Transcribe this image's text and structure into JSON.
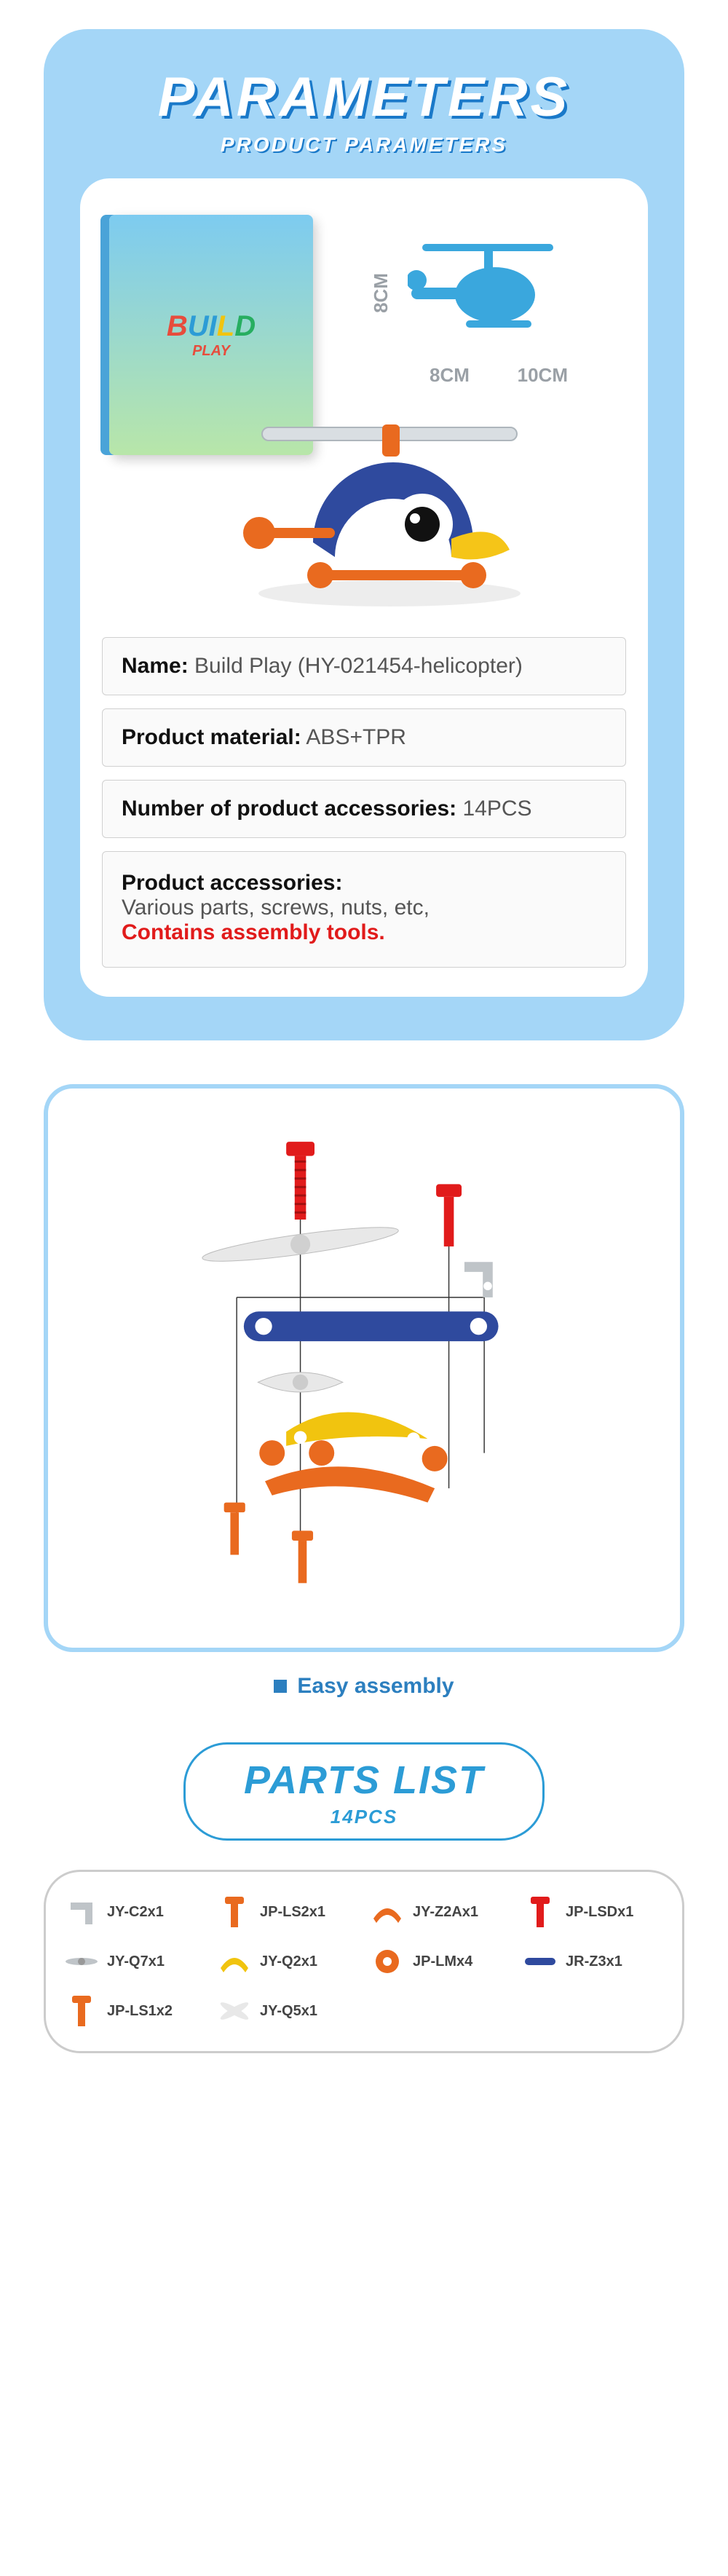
{
  "colors": {
    "card_bg": "#a4d6f7",
    "accent_blue": "#2c9cd6",
    "deep_blue": "#1a79c9",
    "red": "#e11b1b",
    "gray_text": "#555555",
    "gray_border": "#d0d0d0",
    "light_border": "#cccccc",
    "silhouette": "#3aa7dd",
    "dim_text": "#9aa0a6"
  },
  "parameters_card": {
    "title": "PARAMETERS",
    "subtitle": "PRODUCT PARAMETERS",
    "box_logo_letters": [
      "B",
      "U",
      "I",
      "L",
      "D"
    ],
    "box_logo_sub": "PLAY",
    "dimensions": {
      "height_cm": "8CM",
      "width_cm": "8CM",
      "length_cm": "10CM"
    },
    "specs": [
      {
        "label": "Name:",
        "value": "Build Play (HY-021454-helicopter)"
      },
      {
        "label": "Product material:",
        "value": "ABS+TPR"
      },
      {
        "label": "Number of product accessories:",
        "value": "14PCS"
      }
    ],
    "accessories": {
      "label": "Product accessories:",
      "line1": "Various parts, screws, nuts, etc,",
      "line2": "Contains assembly tools."
    }
  },
  "exploded_card": {
    "caption": "Easy assembly"
  },
  "parts_card": {
    "title": "PARTS LIST",
    "subtitle": "14PCS",
    "parts": [
      {
        "code": "JY-C2x1",
        "color": "#bfc4c8",
        "shape": "bracket"
      },
      {
        "code": "JP-LS2x1",
        "color": "#e96a1f",
        "shape": "screw"
      },
      {
        "code": "JY-Z2Ax1",
        "color": "#e96a1f",
        "shape": "curve"
      },
      {
        "code": "JP-LSDx1",
        "color": "#e11b1b",
        "shape": "screw"
      },
      {
        "code": "JY-Q7x1",
        "color": "#bfc4c8",
        "shape": "propL"
      },
      {
        "code": "JY-Q2x1",
        "color": "#f1c40f",
        "shape": "curve"
      },
      {
        "code": "JP-LMx4",
        "color": "#e96a1f",
        "shape": "nut"
      },
      {
        "code": "JR-Z3x1",
        "color": "#2f4a9e",
        "shape": "bar"
      },
      {
        "code": "JP-LS1x2",
        "color": "#e96a1f",
        "shape": "screw"
      },
      {
        "code": "JY-Q5x1",
        "color": "#e8e8e8",
        "shape": "propX"
      }
    ]
  }
}
